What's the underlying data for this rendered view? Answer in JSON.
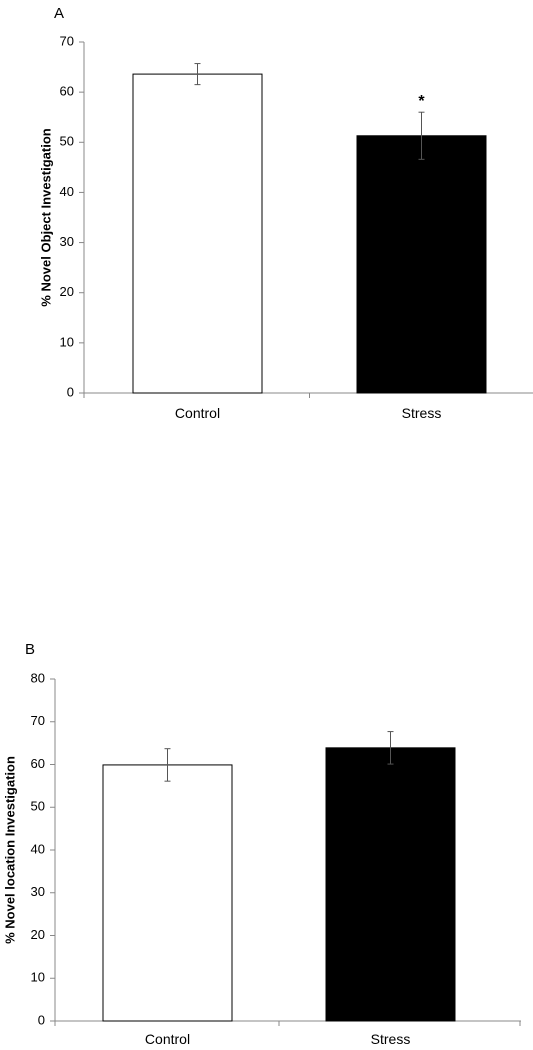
{
  "chart_data": [
    {
      "panel_label": "A",
      "type": "bar",
      "categories": [
        "Control",
        "Stress"
      ],
      "values": [
        63.6,
        51.3
      ],
      "errors": [
        2.1,
        4.7
      ],
      "bar_colors": [
        "#ffffff",
        "#000000"
      ],
      "ylabel": "% Novel Object Investigation",
      "ylim": [
        0,
        70
      ],
      "yticks": [
        0,
        10,
        20,
        30,
        40,
        50,
        60,
        70
      ],
      "annotations": [
        {
          "category": "Stress",
          "text": "*"
        }
      ],
      "grid": false
    },
    {
      "panel_label": "B",
      "type": "bar",
      "categories": [
        "Control",
        "Stress"
      ],
      "values": [
        59.9,
        63.9
      ],
      "errors": [
        3.8,
        3.8
      ],
      "bar_colors": [
        "#ffffff",
        "#000000"
      ],
      "ylabel": "% Novel location Investigation",
      "ylim": [
        0,
        80
      ],
      "yticks": [
        0,
        10,
        20,
        30,
        40,
        50,
        60,
        70,
        80
      ],
      "annotations": [],
      "grid": false
    }
  ]
}
